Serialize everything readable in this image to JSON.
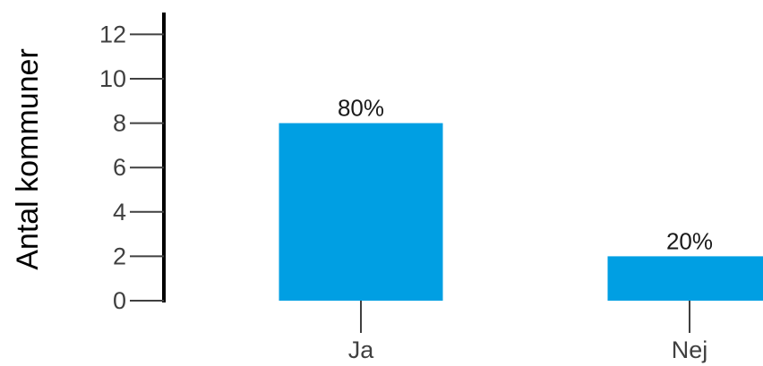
{
  "chart_data": {
    "type": "bar",
    "categories": [
      "Ja",
      "Nej"
    ],
    "values": [
      8,
      2
    ],
    "data_labels": [
      "80%",
      "20%"
    ],
    "title": "",
    "xlabel": "",
    "ylabel": "Antal kommuner",
    "ylim": [
      0,
      12
    ],
    "yticks": [
      0,
      2,
      4,
      6,
      8,
      10,
      12
    ],
    "grid": false,
    "legend": "none",
    "colors": {
      "bar": "#009fe3",
      "axis": "#000000",
      "tick": "#404040"
    }
  }
}
